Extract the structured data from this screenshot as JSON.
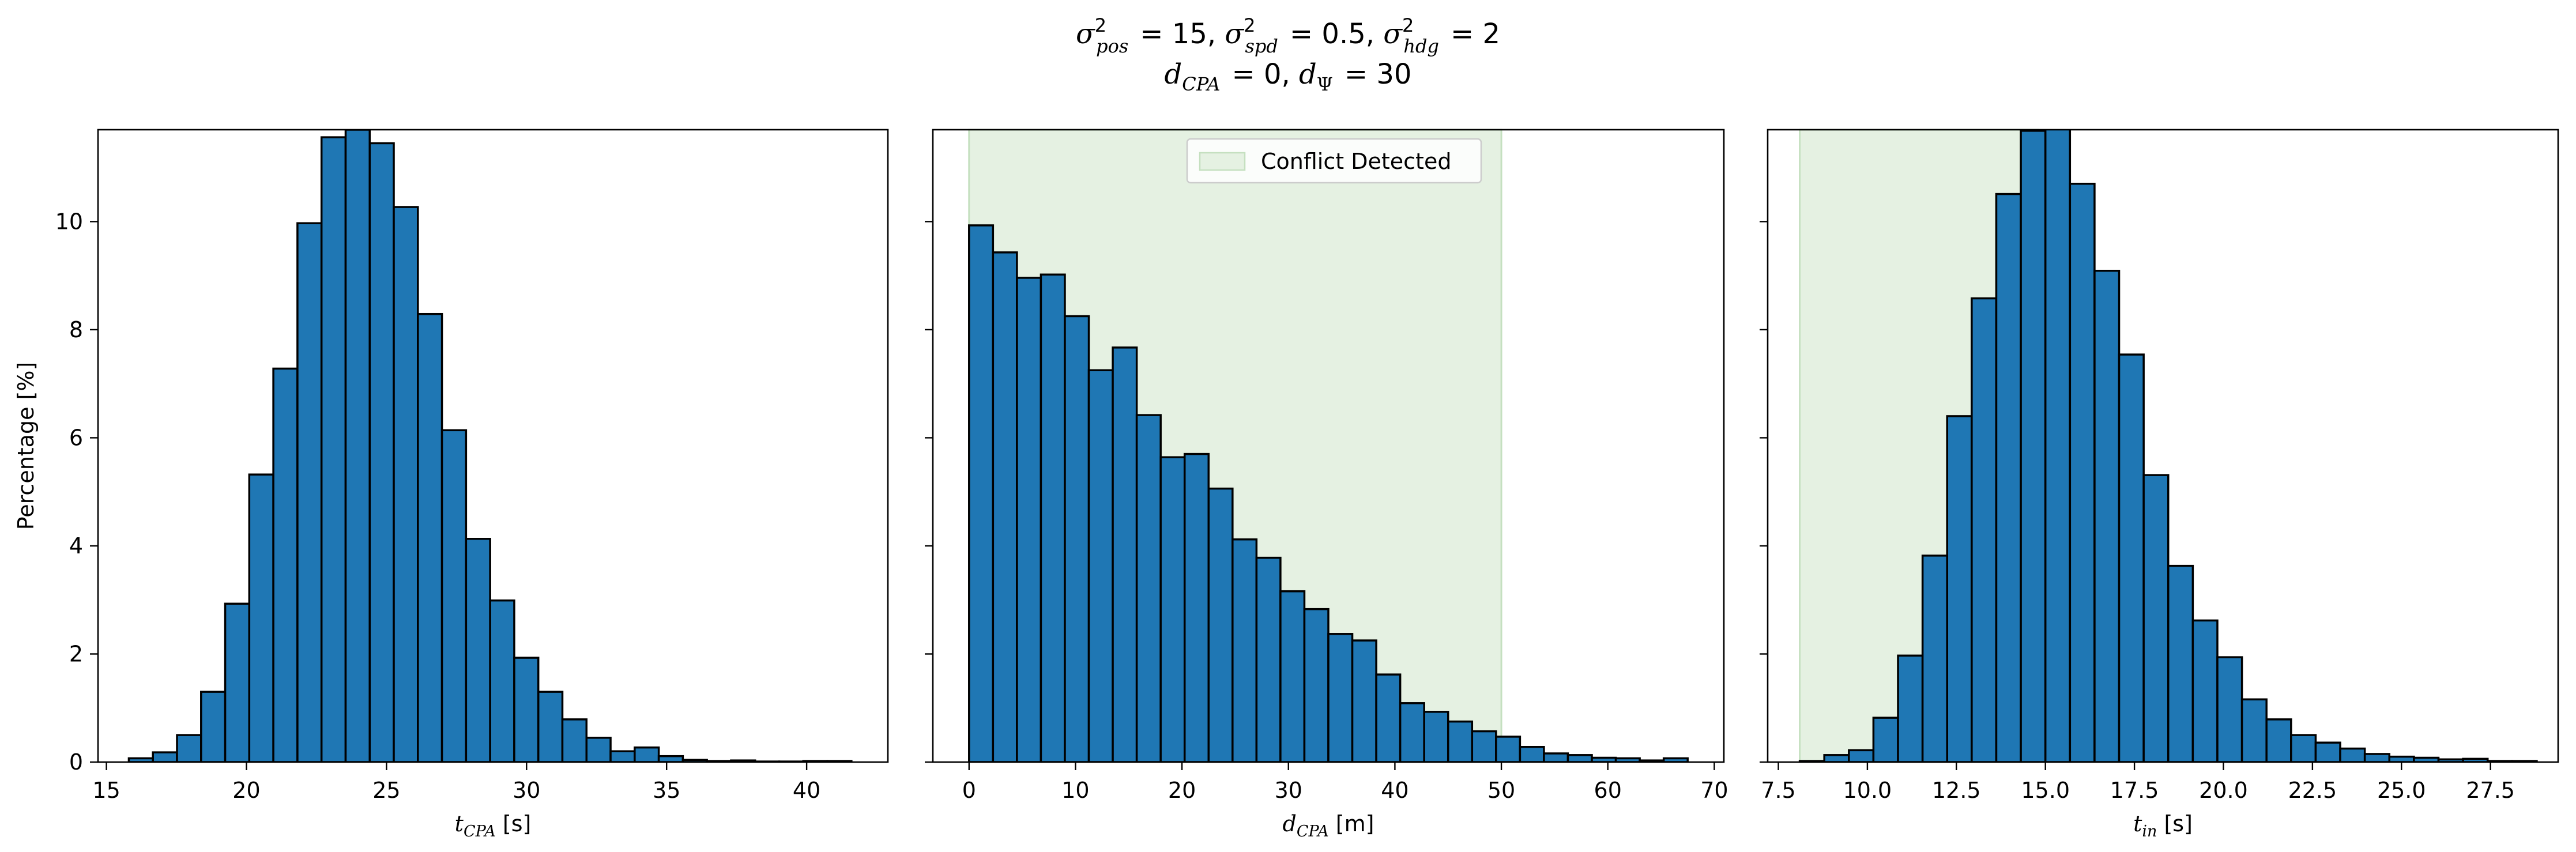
{
  "figure": {
    "title_line_1": "σ²pos = 15, σ²spd = 0.5, σ²hdg = 2",
    "title_line_2": "dCPA = 0, dΨ = 30"
  },
  "chart_data": [
    {
      "type": "bar",
      "xlabel_main": "t",
      "xlabel_sub": "CPA",
      "xlabel_unit": " [s]",
      "ylabel": "Percentage [%]",
      "xlim": [
        14.7,
        42.9
      ],
      "ylim": [
        0,
        11.7
      ],
      "xticks": [
        15,
        20,
        25,
        30,
        35,
        40
      ],
      "yticks": [
        0,
        2,
        4,
        6,
        8,
        10
      ],
      "show_ytick_labels": true,
      "bin_width": 0.86,
      "bin_start": 15.8,
      "values": [
        0.07,
        0.18,
        0.5,
        1.3,
        2.93,
        5.32,
        7.28,
        9.97,
        11.56,
        11.7,
        11.45,
        10.27,
        8.29,
        6.14,
        4.13,
        2.99,
        1.93,
        1.3,
        0.79,
        0.45,
        0.2,
        0.27,
        0.11,
        0.04,
        0.02,
        0.03,
        0.01,
        0.01,
        0.02,
        0.02
      ],
      "shade": null,
      "legend": null
    },
    {
      "type": "bar",
      "xlabel_main": "d",
      "xlabel_sub": "CPA",
      "xlabel_unit": " [m]",
      "ylabel": "",
      "xlim": [
        -3.4,
        70.9
      ],
      "ylim": [
        0,
        11.7
      ],
      "xticks": [
        0,
        10,
        20,
        30,
        40,
        50,
        60,
        70
      ],
      "yticks": [
        0,
        2,
        4,
        6,
        8,
        10
      ],
      "show_ytick_labels": false,
      "bin_width": 2.25,
      "bin_start": 0,
      "values": [
        9.93,
        9.43,
        8.96,
        9.02,
        8.25,
        7.25,
        7.67,
        6.42,
        5.64,
        5.7,
        5.06,
        4.12,
        3.78,
        3.16,
        2.83,
        2.37,
        2.25,
        1.62,
        1.09,
        0.93,
        0.75,
        0.57,
        0.47,
        0.28,
        0.16,
        0.13,
        0.08,
        0.07,
        0.03,
        0.07
      ],
      "shade": {
        "from": 0,
        "to": 50,
        "color": "#e5f1e2",
        "edge": "#c5e0c0"
      },
      "legend": {
        "label": "Conflict Detected",
        "position": "upper center"
      }
    },
    {
      "type": "bar",
      "xlabel_main": "t",
      "xlabel_sub": "in",
      "xlabel_unit": " [s]",
      "ylabel": "",
      "xlim": [
        7.2,
        29.4
      ],
      "ylim": [
        0,
        11.7
      ],
      "xticks": [
        7.5,
        10.0,
        12.5,
        15.0,
        17.5,
        20.0,
        22.5,
        25.0,
        27.5
      ],
      "xtick_labels": [
        "7.5",
        "10.0",
        "12.5",
        "15.0",
        "17.5",
        "20.0",
        "22.5",
        "25.0",
        "27.5"
      ],
      "yticks": [
        0,
        2,
        4,
        6,
        8,
        10
      ],
      "show_ytick_labels": false,
      "bin_width": 0.69,
      "bin_start": 8.1,
      "values": [
        0.02,
        0.13,
        0.22,
        0.82,
        1.97,
        3.82,
        6.4,
        8.58,
        10.51,
        11.68,
        12.0,
        10.7,
        9.09,
        7.54,
        5.31,
        3.63,
        2.62,
        1.94,
        1.16,
        0.79,
        0.5,
        0.36,
        0.25,
        0.15,
        0.1,
        0.08,
        0.05,
        0.06,
        0.02,
        0.02
      ],
      "shade": {
        "from": 8.1,
        "to": 14.8,
        "color": "#e5f1e2",
        "edge": "#c5e0c0"
      },
      "legend": null
    }
  ]
}
